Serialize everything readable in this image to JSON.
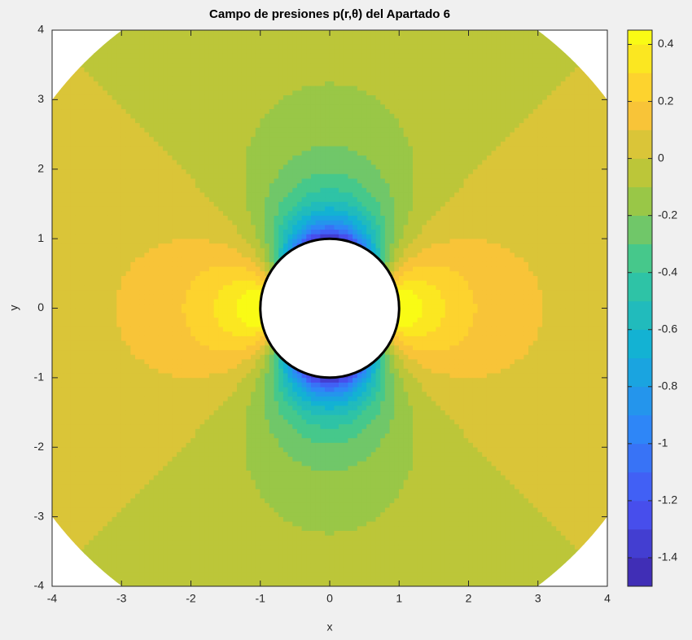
{
  "chart_data": {
    "type": "contourf",
    "title": "Campo de presiones p(r,θ) del Apartado 6",
    "xlabel": "x",
    "ylabel": "y",
    "xlim": [
      -4,
      4
    ],
    "xticks": [
      -4,
      -3,
      -2,
      -1,
      0,
      1,
      2,
      3,
      4
    ],
    "ylim": [
      -4,
      4
    ],
    "yticks": [
      -4,
      -3,
      -2,
      -1,
      0,
      1,
      2,
      3,
      4
    ],
    "r_inner": 1,
    "r_outer": 5,
    "colormap": "parula",
    "clim": [
      -1.5,
      0.45
    ],
    "cticks": [
      -1.4,
      -1.2,
      -1,
      -0.8,
      -0.6,
      -0.4,
      -0.2,
      0,
      0.2,
      0.4
    ]
  }
}
